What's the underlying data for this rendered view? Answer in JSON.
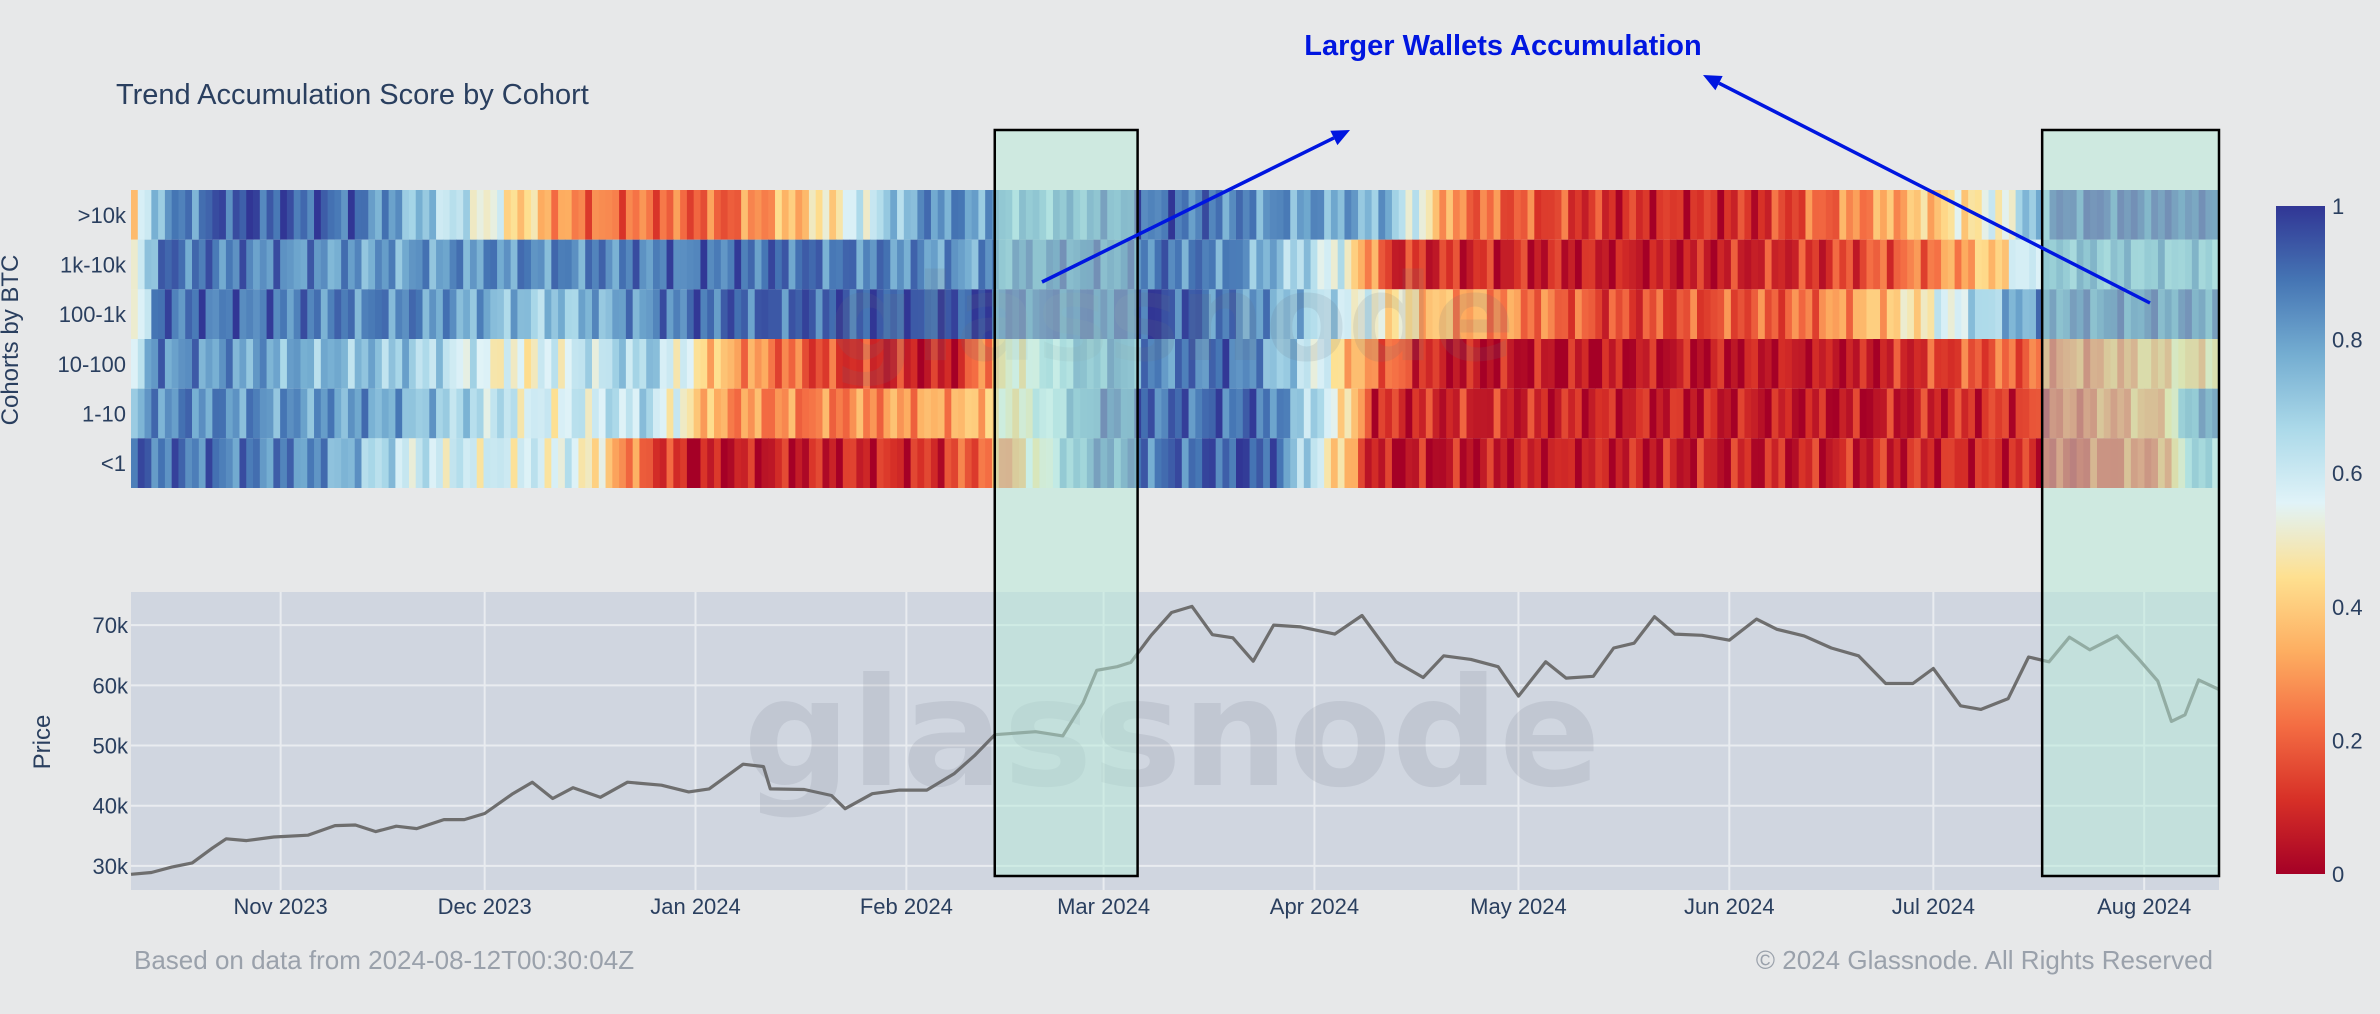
{
  "chart_data": [
    {
      "type": "heatmap",
      "title": "Trend Accumulation Score by Cohort",
      "ylabel": "Cohorts by BTC",
      "rows": [
        ">10k",
        "1k-10k",
        "100-1k",
        "10-100",
        "1-10",
        "<1"
      ],
      "x_range": [
        "2023-10-10",
        "2024-08-12"
      ],
      "colorscale": {
        "min": 0,
        "max": 1,
        "ticks": [
          "0",
          "0.2",
          "0.4",
          "0.6",
          "0.8",
          "1"
        ],
        "colors": [
          "#a50026",
          "#d73027",
          "#f46d43",
          "#fdae61",
          "#fee090",
          "#e0f3f8",
          "#abd9e9",
          "#74add1",
          "#4575b4",
          "#313695"
        ]
      },
      "segments": [
        {
          "row": ">10k",
          "points": [
            [
              "2023-10-10",
              0.3
            ],
            [
              "2023-10-14",
              0.8
            ],
            [
              "2023-10-25",
              0.95
            ],
            [
              "2023-11-12",
              0.9
            ],
            [
              "2023-11-28",
              0.6
            ],
            [
              "2023-12-08",
              0.4
            ],
            [
              "2023-12-14",
              0.25
            ],
            [
              "2024-01-05",
              0.2
            ],
            [
              "2024-01-20",
              0.45
            ],
            [
              "2024-02-05",
              0.85
            ],
            [
              "2024-02-20",
              0.75
            ],
            [
              "2024-03-10",
              0.9
            ],
            [
              "2024-04-12",
              0.75
            ],
            [
              "2024-04-22",
              0.25
            ],
            [
              "2024-05-15",
              0.1
            ],
            [
              "2024-06-05",
              0.1
            ],
            [
              "2024-06-20",
              0.28
            ],
            [
              "2024-07-01",
              0.4
            ],
            [
              "2024-07-12",
              0.55
            ],
            [
              "2024-07-20",
              0.95
            ],
            [
              "2024-08-12",
              0.95
            ]
          ]
        },
        {
          "row": "1k-10k",
          "points": [
            [
              "2023-10-10",
              0.4
            ],
            [
              "2023-10-14",
              0.9
            ],
            [
              "2023-11-15",
              0.8
            ],
            [
              "2023-12-15",
              0.85
            ],
            [
              "2024-01-15",
              0.9
            ],
            [
              "2024-02-10",
              0.8
            ],
            [
              "2024-02-25",
              0.9
            ],
            [
              "2024-03-20",
              0.85
            ],
            [
              "2024-04-05",
              0.55
            ],
            [
              "2024-04-12",
              0.12
            ],
            [
              "2024-05-20",
              0.05
            ],
            [
              "2024-06-15",
              0.12
            ],
            [
              "2024-07-01",
              0.25
            ],
            [
              "2024-07-10",
              0.4
            ],
            [
              "2024-07-20",
              0.8
            ],
            [
              "2024-08-12",
              0.75
            ]
          ]
        },
        {
          "row": "100-1k",
          "points": [
            [
              "2023-10-10",
              0.4
            ],
            [
              "2023-10-14",
              0.9
            ],
            [
              "2023-11-20",
              0.85
            ],
            [
              "2023-12-10",
              0.7
            ],
            [
              "2024-01-01",
              0.9
            ],
            [
              "2024-02-10",
              0.95
            ],
            [
              "2024-03-10",
              0.95
            ],
            [
              "2024-03-25",
              0.8
            ],
            [
              "2024-04-05",
              0.6
            ],
            [
              "2024-04-20",
              0.35
            ],
            [
              "2024-05-15",
              0.15
            ],
            [
              "2024-06-10",
              0.2
            ],
            [
              "2024-06-25",
              0.4
            ],
            [
              "2024-07-05",
              0.6
            ],
            [
              "2024-07-20",
              0.9
            ],
            [
              "2024-08-12",
              0.9
            ]
          ]
        },
        {
          "row": "10-100",
          "points": [
            [
              "2023-10-10",
              0.6
            ],
            [
              "2023-10-14",
              0.85
            ],
            [
              "2023-11-20",
              0.7
            ],
            [
              "2023-12-05",
              0.5
            ],
            [
              "2023-12-25",
              0.7
            ],
            [
              "2024-01-05",
              0.35
            ],
            [
              "2024-01-20",
              0.15
            ],
            [
              "2024-02-08",
              0.05
            ],
            [
              "2024-02-16",
              0.45
            ],
            [
              "2024-02-28",
              0.8
            ],
            [
              "2024-03-20",
              0.9
            ],
            [
              "2024-04-01",
              0.6
            ],
            [
              "2024-04-08",
              0.3
            ],
            [
              "2024-04-20",
              0.05
            ],
            [
              "2024-06-20",
              0.05
            ],
            [
              "2024-07-10",
              0.2
            ],
            [
              "2024-07-25",
              0.25
            ],
            [
              "2024-08-06",
              0.4
            ],
            [
              "2024-08-12",
              0.4
            ]
          ]
        },
        {
          "row": "1-10",
          "points": [
            [
              "2023-10-10",
              0.7
            ],
            [
              "2023-10-14",
              0.85
            ],
            [
              "2023-11-15",
              0.8
            ],
            [
              "2023-12-10",
              0.55
            ],
            [
              "2023-12-25",
              0.65
            ],
            [
              "2024-01-05",
              0.3
            ],
            [
              "2024-01-20",
              0.25
            ],
            [
              "2024-02-10",
              0.35
            ],
            [
              "2024-02-20",
              0.55
            ],
            [
              "2024-03-01",
              0.9
            ],
            [
              "2024-03-25",
              0.9
            ],
            [
              "2024-04-05",
              0.5
            ],
            [
              "2024-04-10",
              0.1
            ],
            [
              "2024-06-20",
              0.05
            ],
            [
              "2024-07-20",
              0.15
            ],
            [
              "2024-08-05",
              0.35
            ],
            [
              "2024-08-07",
              0.85
            ],
            [
              "2024-08-12",
              0.85
            ]
          ]
        },
        {
          "row": "<1",
          "points": [
            [
              "2023-10-10",
              0.9
            ],
            [
              "2023-11-05",
              0.85
            ],
            [
              "2023-11-20",
              0.6
            ],
            [
              "2023-12-15",
              0.55
            ],
            [
              "2023-12-24",
              0.2
            ],
            [
              "2024-01-01",
              0.05
            ],
            [
              "2024-02-05",
              0.1
            ],
            [
              "2024-02-16",
              0.3
            ],
            [
              "2024-02-28",
              0.85
            ],
            [
              "2024-03-25",
              0.95
            ],
            [
              "2024-04-05",
              0.4
            ],
            [
              "2024-04-10",
              0.05
            ],
            [
              "2024-07-20",
              0.1
            ],
            [
              "2024-08-05",
              0.25
            ],
            [
              "2024-08-07",
              0.7
            ],
            [
              "2024-08-12",
              0.7
            ]
          ]
        }
      ]
    },
    {
      "type": "line",
      "ylabel": "Price",
      "x_ticks": [
        "Nov 2023",
        "Dec 2023",
        "Jan 2024",
        "Feb 2024",
        "Mar 2024",
        "Apr 2024",
        "May 2024",
        "Jun 2024",
        "Jul 2024",
        "Aug 2024"
      ],
      "x_tick_dates": [
        "2023-11-01",
        "2023-12-01",
        "2024-01-01",
        "2024-02-01",
        "2024-03-01",
        "2024-04-01",
        "2024-05-01",
        "2024-06-01",
        "2024-07-01",
        "2024-08-01"
      ],
      "y_ticks": [
        "30k",
        "40k",
        "50k",
        "60k",
        "70k"
      ],
      "y_tick_values": [
        30000,
        40000,
        50000,
        60000,
        70000
      ],
      "ylim": [
        26000,
        75500
      ],
      "xlim": [
        "2023-10-10",
        "2024-08-12"
      ],
      "series": [
        {
          "points": [
            [
              "2023-10-10",
              28600
            ],
            [
              "2023-10-13",
              28900
            ],
            [
              "2023-10-16",
              29800
            ],
            [
              "2023-10-19",
              30500
            ],
            [
              "2023-10-22",
              33000
            ],
            [
              "2023-10-24",
              34500
            ],
            [
              "2023-10-27",
              34200
            ],
            [
              "2023-10-31",
              34800
            ],
            [
              "2023-11-05",
              35100
            ],
            [
              "2023-11-09",
              36700
            ],
            [
              "2023-11-12",
              36800
            ],
            [
              "2023-11-15",
              35700
            ],
            [
              "2023-11-18",
              36600
            ],
            [
              "2023-11-21",
              36200
            ],
            [
              "2023-11-25",
              37700
            ],
            [
              "2023-11-28",
              37700
            ],
            [
              "2023-12-01",
              38700
            ],
            [
              "2023-12-05",
              41900
            ],
            [
              "2023-12-08",
              43900
            ],
            [
              "2023-12-11",
              41200
            ],
            [
              "2023-12-14",
              43000
            ],
            [
              "2023-12-18",
              41400
            ],
            [
              "2023-12-22",
              43900
            ],
            [
              "2023-12-27",
              43400
            ],
            [
              "2023-12-31",
              42300
            ],
            [
              "2024-01-03",
              42800
            ],
            [
              "2024-01-08",
              46900
            ],
            [
              "2024-01-11",
              46500
            ],
            [
              "2024-01-12",
              42800
            ],
            [
              "2024-01-17",
              42700
            ],
            [
              "2024-01-21",
              41700
            ],
            [
              "2024-01-23",
              39500
            ],
            [
              "2024-01-27",
              42000
            ],
            [
              "2024-01-31",
              42600
            ],
            [
              "2024-02-04",
              42600
            ],
            [
              "2024-02-08",
              45300
            ],
            [
              "2024-02-11",
              48300
            ],
            [
              "2024-02-14",
              51800
            ],
            [
              "2024-02-20",
              52300
            ],
            [
              "2024-02-24",
              51600
            ],
            [
              "2024-02-27",
              57100
            ],
            [
              "2024-02-29",
              62500
            ],
            [
              "2024-03-03",
              63100
            ],
            [
              "2024-03-05",
              63800
            ],
            [
              "2024-03-08",
              68300
            ],
            [
              "2024-03-11",
              72100
            ],
            [
              "2024-03-14",
              73100
            ],
            [
              "2024-03-17",
              68400
            ],
            [
              "2024-03-20",
              67900
            ],
            [
              "2024-03-23",
              64000
            ],
            [
              "2024-03-26",
              70000
            ],
            [
              "2024-03-30",
              69700
            ],
            [
              "2024-04-04",
              68500
            ],
            [
              "2024-04-08",
              71600
            ],
            [
              "2024-04-13",
              63900
            ],
            [
              "2024-04-17",
              61300
            ],
            [
              "2024-04-20",
              64900
            ],
            [
              "2024-04-24",
              64300
            ],
            [
              "2024-04-28",
              63100
            ],
            [
              "2024-05-01",
              58200
            ],
            [
              "2024-05-05",
              63900
            ],
            [
              "2024-05-08",
              61200
            ],
            [
              "2024-05-12",
              61500
            ],
            [
              "2024-05-15",
              66200
            ],
            [
              "2024-05-18",
              67000
            ],
            [
              "2024-05-21",
              71400
            ],
            [
              "2024-05-24",
              68500
            ],
            [
              "2024-05-28",
              68300
            ],
            [
              "2024-06-01",
              67500
            ],
            [
              "2024-06-05",
              71000
            ],
            [
              "2024-06-08",
              69300
            ],
            [
              "2024-06-12",
              68200
            ],
            [
              "2024-06-16",
              66200
            ],
            [
              "2024-06-20",
              64900
            ],
            [
              "2024-06-24",
              60300
            ],
            [
              "2024-06-28",
              60300
            ],
            [
              "2024-07-01",
              62800
            ],
            [
              "2024-07-05",
              56600
            ],
            [
              "2024-07-08",
              56000
            ],
            [
              "2024-07-12",
              57800
            ],
            [
              "2024-07-15",
              64700
            ],
            [
              "2024-07-18",
              63900
            ],
            [
              "2024-07-21",
              68000
            ],
            [
              "2024-07-24",
              65900
            ],
            [
              "2024-07-28",
              68200
            ],
            [
              "2024-07-31",
              64600
            ],
            [
              "2024-08-03",
              60700
            ],
            [
              "2024-08-05",
              54000
            ],
            [
              "2024-08-07",
              55100
            ],
            [
              "2024-08-09",
              60900
            ],
            [
              "2024-08-12",
              59300
            ]
          ]
        }
      ]
    }
  ],
  "annotation": {
    "label": "Larger Wallets Accumulation",
    "color": "#0016e0"
  },
  "highlights": [
    {
      "start": "2024-02-14",
      "end": "2024-03-06"
    },
    {
      "start": "2024-07-17",
      "end": "2024-08-12"
    }
  ],
  "watermark": "glassnode",
  "footer": {
    "left": "Based on data from 2024-08-12T00:30:04Z",
    "right": "© 2024 Glassnode. All Rights Reserved"
  }
}
